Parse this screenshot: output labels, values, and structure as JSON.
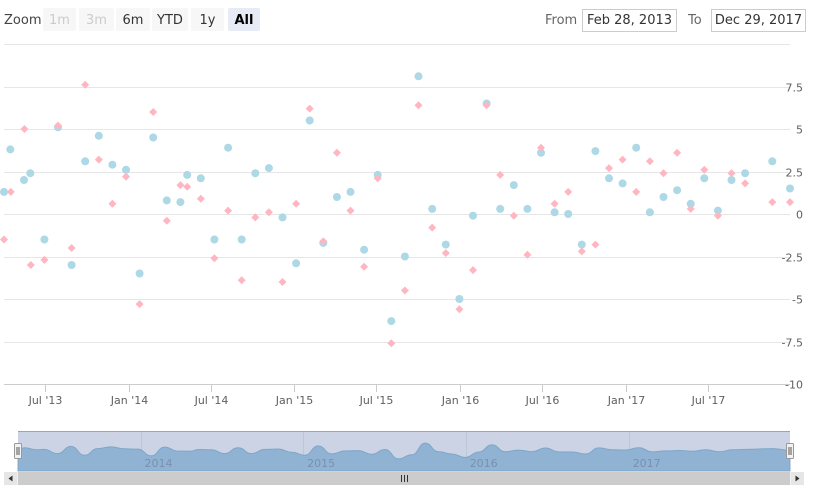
{
  "zoom": {
    "label": "Zoom",
    "buttons": [
      {
        "label": "1m",
        "state": "disabled"
      },
      {
        "label": "3m",
        "state": "disabled"
      },
      {
        "label": "6m",
        "state": "normal"
      },
      {
        "label": "YTD",
        "state": "normal"
      },
      {
        "label": "1y",
        "state": "normal"
      },
      {
        "label": "All",
        "state": "active"
      }
    ]
  },
  "range": {
    "from_label": "From",
    "from_value": "Feb 28, 2013",
    "to_label": "To",
    "to_value": "Dec 29, 2017"
  },
  "chart_data": {
    "type": "scatter",
    "x_type": "datetime",
    "x_range": [
      "2013-04-01",
      "2017-12-29"
    ],
    "ylim": [
      -10,
      10
    ],
    "y_ticks": [
      -10,
      -7.5,
      -5,
      -2.5,
      0,
      2.5,
      5,
      7.5
    ],
    "y_tick_labels": [
      "-10",
      "-7.5",
      "-5",
      "-2.5",
      "0",
      "2.5",
      "5",
      "7.5"
    ],
    "y_axis_side": "right",
    "x_ticks": [
      "2013-07-01",
      "2014-01-01",
      "2014-07-01",
      "2015-01-01",
      "2015-07-01",
      "2016-01-01",
      "2016-07-01",
      "2017-01-01",
      "2017-07-01"
    ],
    "x_tick_labels": [
      "Jul '13",
      "Jan '14",
      "Jul '14",
      "Jan '15",
      "Jul '15",
      "Jan '16",
      "Jul '16",
      "Jan '17",
      "Jul '17"
    ],
    "grid": true,
    "series": [
      {
        "marker": "circle",
        "color": "#add8e6",
        "points": [
          [
            "2013-04-01",
            1.3
          ],
          [
            "2013-04-15",
            3.8
          ],
          [
            "2013-05-15",
            2.0
          ],
          [
            "2013-05-29",
            2.4
          ],
          [
            "2013-06-29",
            -1.5
          ],
          [
            "2013-07-29",
            5.1
          ],
          [
            "2013-08-28",
            -3.0
          ],
          [
            "2013-09-27",
            3.1
          ],
          [
            "2013-10-27",
            4.6
          ],
          [
            "2013-11-26",
            2.9
          ],
          [
            "2013-12-26",
            2.6
          ],
          [
            "2014-01-25",
            -3.5
          ],
          [
            "2014-02-24",
            4.5
          ],
          [
            "2014-03-26",
            0.8
          ],
          [
            "2014-04-25",
            0.7
          ],
          [
            "2014-05-10",
            2.3
          ],
          [
            "2014-06-09",
            2.1
          ],
          [
            "2014-07-09",
            -1.5
          ],
          [
            "2014-08-08",
            3.9
          ],
          [
            "2014-09-07",
            -1.5
          ],
          [
            "2014-10-07",
            2.4
          ],
          [
            "2014-11-06",
            2.7
          ],
          [
            "2014-12-06",
            -0.2
          ],
          [
            "2015-01-05",
            -2.9
          ],
          [
            "2015-02-04",
            5.5
          ],
          [
            "2015-03-06",
            -1.7
          ],
          [
            "2015-04-05",
            1.0
          ],
          [
            "2015-05-05",
            1.3
          ],
          [
            "2015-06-04",
            -2.1
          ],
          [
            "2015-07-04",
            2.3
          ],
          [
            "2015-08-03",
            -6.3
          ],
          [
            "2015-09-02",
            -2.5
          ],
          [
            "2015-10-02",
            8.1
          ],
          [
            "2015-11-01",
            0.3
          ],
          [
            "2015-12-01",
            -1.8
          ],
          [
            "2015-12-31",
            -5.0
          ],
          [
            "2016-01-30",
            -0.1
          ],
          [
            "2016-02-29",
            6.5
          ],
          [
            "2016-03-30",
            0.3
          ],
          [
            "2016-04-29",
            1.7
          ],
          [
            "2016-05-29",
            0.3
          ],
          [
            "2016-06-28",
            3.6
          ],
          [
            "2016-07-28",
            0.1
          ],
          [
            "2016-08-27",
            0.0
          ],
          [
            "2016-09-26",
            -1.8
          ],
          [
            "2016-10-26",
            3.7
          ],
          [
            "2016-11-25",
            2.1
          ],
          [
            "2016-12-25",
            1.8
          ],
          [
            "2017-01-24",
            3.9
          ],
          [
            "2017-02-23",
            0.1
          ],
          [
            "2017-03-25",
            1.0
          ],
          [
            "2017-04-24",
            1.4
          ],
          [
            "2017-05-24",
            0.6
          ],
          [
            "2017-06-23",
            2.1
          ],
          [
            "2017-07-23",
            0.2
          ],
          [
            "2017-08-22",
            2.0
          ],
          [
            "2017-09-21",
            2.4
          ],
          [
            "2017-11-20",
            3.1
          ],
          [
            "2017-12-29",
            1.5
          ]
        ]
      },
      {
        "marker": "diamond",
        "color": "#ffb6c1",
        "points": [
          [
            "2013-04-01",
            -1.5
          ],
          [
            "2013-04-16",
            1.3
          ],
          [
            "2013-05-16",
            5.0
          ],
          [
            "2013-05-30",
            -3.0
          ],
          [
            "2013-06-29",
            -2.7
          ],
          [
            "2013-07-29",
            5.2
          ],
          [
            "2013-08-28",
            -2.0
          ],
          [
            "2013-09-27",
            7.6
          ],
          [
            "2013-10-27",
            3.2
          ],
          [
            "2013-11-26",
            0.6
          ],
          [
            "2013-12-26",
            2.2
          ],
          [
            "2014-01-25",
            -5.3
          ],
          [
            "2014-02-24",
            6.0
          ],
          [
            "2014-03-26",
            -0.4
          ],
          [
            "2014-04-25",
            1.7
          ],
          [
            "2014-05-10",
            1.6
          ],
          [
            "2014-06-09",
            0.9
          ],
          [
            "2014-07-09",
            -2.6
          ],
          [
            "2014-08-08",
            0.2
          ],
          [
            "2014-09-07",
            -3.9
          ],
          [
            "2014-10-07",
            -0.2
          ],
          [
            "2014-11-06",
            0.1
          ],
          [
            "2014-12-06",
            -4.0
          ],
          [
            "2015-01-05",
            0.6
          ],
          [
            "2015-02-04",
            6.2
          ],
          [
            "2015-03-06",
            -1.6
          ],
          [
            "2015-04-05",
            3.6
          ],
          [
            "2015-05-05",
            0.2
          ],
          [
            "2015-06-04",
            -3.1
          ],
          [
            "2015-07-04",
            2.1
          ],
          [
            "2015-08-03",
            -7.6
          ],
          [
            "2015-09-02",
            -4.5
          ],
          [
            "2015-10-02",
            6.4
          ],
          [
            "2015-11-01",
            -0.8
          ],
          [
            "2015-12-01",
            -2.3
          ],
          [
            "2015-12-31",
            -5.6
          ],
          [
            "2016-01-30",
            -3.3
          ],
          [
            "2016-02-29",
            6.4
          ],
          [
            "2016-03-30",
            2.3
          ],
          [
            "2016-04-29",
            -0.1
          ],
          [
            "2016-05-29",
            -2.4
          ],
          [
            "2016-06-28",
            3.9
          ],
          [
            "2016-07-28",
            0.6
          ],
          [
            "2016-08-27",
            1.3
          ],
          [
            "2016-09-26",
            -2.2
          ],
          [
            "2016-10-26",
            -1.8
          ],
          [
            "2016-11-25",
            2.7
          ],
          [
            "2016-12-25",
            3.2
          ],
          [
            "2017-01-24",
            1.3
          ],
          [
            "2017-02-23",
            3.1
          ],
          [
            "2017-03-25",
            2.4
          ],
          [
            "2017-04-24",
            3.6
          ],
          [
            "2017-05-24",
            0.3
          ],
          [
            "2017-06-23",
            2.6
          ],
          [
            "2017-07-23",
            -0.1
          ],
          [
            "2017-08-22",
            2.4
          ],
          [
            "2017-09-21",
            1.8
          ],
          [
            "2017-11-20",
            0.7
          ],
          [
            "2017-12-29",
            0.7
          ]
        ]
      }
    ],
    "navigator": {
      "year_labels": [
        "2014",
        "2015",
        "2016",
        "2017"
      ],
      "year_positions": [
        "2014-01-01",
        "2015-01-01",
        "2016-01-01",
        "2017-01-01"
      ],
      "selection": [
        "2013-04-01",
        "2017-12-29"
      ]
    }
  }
}
